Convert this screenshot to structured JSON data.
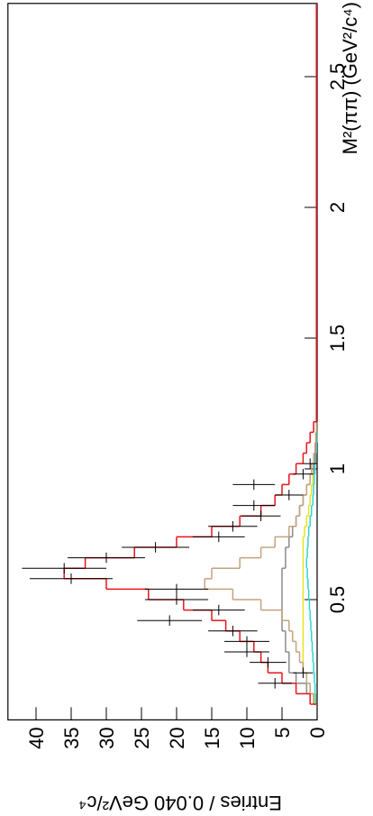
{
  "chart_data": {
    "type": "histogram",
    "x_label": "M²(ππ) (GeV²/c⁴)",
    "y_label": "Entries / 0.040 GeV²/c⁴",
    "xlim": [
      0.04,
      2.78
    ],
    "ylim": [
      0,
      44
    ],
    "xticks": [
      0.5,
      1,
      1.5,
      2,
      2.5
    ],
    "yticks": [
      0,
      5,
      10,
      15,
      20,
      25,
      30,
      35,
      40
    ],
    "bins": [
      0.1,
      0.14,
      0.18,
      0.22,
      0.26,
      0.3,
      0.34,
      0.38,
      0.42,
      0.46,
      0.5,
      0.54,
      0.58,
      0.62,
      0.66,
      0.7,
      0.74,
      0.78,
      0.82,
      0.86,
      0.9,
      0.94,
      0.98,
      1.02,
      1.06,
      1.1,
      1.14,
      1.18
    ],
    "histograms": [
      {
        "color": "#e8e21c",
        "values": [
          0.3,
          1,
          1.5,
          2,
          2,
          2,
          2,
          2,
          2,
          2,
          2,
          2,
          2,
          2,
          2,
          2,
          1.8,
          1.5,
          1.2,
          1,
          0.8,
          0.6,
          0.4,
          0.2,
          0.1,
          0,
          0
        ]
      },
      {
        "color": "#2fd4d4",
        "values": [
          0.2,
          0.3,
          0.4,
          0.5,
          0.6,
          0.7,
          0.8,
          0.9,
          1,
          1.1,
          1.2,
          1.3,
          1.4,
          1.5,
          1.4,
          1.3,
          1.2,
          1,
          0.8,
          0.6,
          0.5,
          0.4,
          0.3,
          0.2,
          0.1,
          0,
          0
        ]
      },
      {
        "color": "#8a8a8a",
        "values": [
          0.5,
          1.5,
          3,
          4,
          4,
          4.5,
          4.5,
          5,
          5,
          5,
          5,
          5,
          5,
          4.5,
          4.5,
          4,
          3.5,
          3,
          2.5,
          2,
          1.5,
          1,
          0.5,
          0.3,
          0.2,
          0.1,
          0
        ]
      },
      {
        "color": "#c4a27f",
        "values": [
          0.5,
          1,
          1.5,
          2,
          2.5,
          3,
          3.5,
          4,
          5,
          8,
          12,
          16,
          15,
          11,
          8,
          6,
          4,
          3,
          2.5,
          2,
          1.5,
          1,
          0.8,
          0.5,
          0.3,
          0.2,
          0.1
        ]
      },
      {
        "color": "#e8141c",
        "values": [
          1,
          3,
          5,
          7,
          8,
          9,
          11,
          13,
          15,
          19,
          24,
          30,
          36,
          33,
          26,
          20,
          15,
          11,
          8,
          6,
          5,
          4,
          3,
          2,
          1.5,
          1,
          0.5
        ]
      }
    ],
    "points": {
      "color": "#000000",
      "x": [
        0.18,
        0.22,
        0.26,
        0.3,
        0.34,
        0.38,
        0.42,
        0.46,
        0.5,
        0.54,
        0.58,
        0.62,
        0.66,
        0.7,
        0.74,
        0.78,
        0.82,
        0.86,
        0.9,
        0.94,
        0.98,
        1.02
      ],
      "values": [
        6,
        2,
        7,
        10,
        10,
        12,
        21,
        14,
        20,
        20,
        35,
        36,
        30,
        23,
        14,
        12,
        8,
        9,
        4,
        9,
        2,
        1
      ],
      "errors": [
        2.4,
        1.4,
        2.6,
        3.2,
        3.2,
        3.5,
        4.6,
        3.7,
        4.5,
        4.5,
        5.9,
        6,
        5.5,
        4.8,
        3.7,
        3.5,
        2.8,
        3,
        2,
        3,
        1.4,
        1
      ]
    }
  }
}
